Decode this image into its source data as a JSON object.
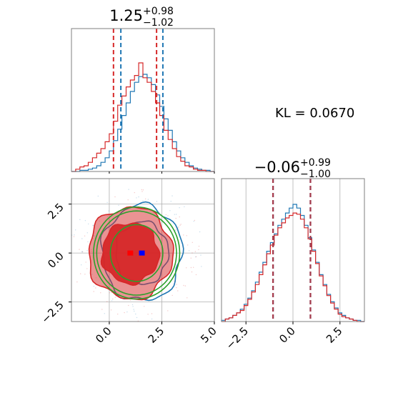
{
  "colors": {
    "series_a": "#1f77b4",
    "series_b": "#d62728",
    "contour_fit": "#2ca02c",
    "grid": "#b0b0b0",
    "frame": "#7f7f7f",
    "marker_a": "#0000ff",
    "marker_b": "#ff0000"
  },
  "figure": {
    "kl_text": "KL = 0.0670"
  },
  "chart_data": [
    {
      "type": "histogram",
      "panel": "marginal-x",
      "title": {
        "median": "1.25",
        "plus": "+0.98",
        "minus": "−1.02"
      },
      "xlim": [
        -1.8,
        5.0
      ],
      "grid": false,
      "bins": [
        -1.8,
        -1.6,
        -1.4,
        -1.2,
        -1.0,
        -0.8,
        -0.6,
        -0.4,
        -0.2,
        0.0,
        0.2,
        0.4,
        0.6,
        0.8,
        1.0,
        1.2,
        1.4,
        1.6,
        1.8,
        2.0,
        2.2,
        2.4,
        2.6,
        2.8,
        3.0,
        3.2,
        3.4,
        3.6,
        3.8,
        4.0,
        4.2,
        4.4,
        4.6,
        4.8,
        5.0
      ],
      "series": [
        {
          "color_key": "series_a",
          "counts": [
            0,
            0,
            0.01,
            0.01,
            0.02,
            0.03,
            0.05,
            0.08,
            0.12,
            0.18,
            0.27,
            0.37,
            0.49,
            0.6,
            0.7,
            0.78,
            0.83,
            0.85,
            0.82,
            0.76,
            0.67,
            0.57,
            0.46,
            0.36,
            0.26,
            0.18,
            0.12,
            0.08,
            0.05,
            0.03,
            0.02,
            0.01,
            0.01,
            0
          ],
          "quantiles": [
            0.55,
            2.55
          ]
        },
        {
          "color_key": "series_b",
          "counts": [
            0,
            0.02,
            0.04,
            0.05,
            0.08,
            0.12,
            0.16,
            0.2,
            0.26,
            0.33,
            0.44,
            0.58,
            0.66,
            0.74,
            0.8,
            0.84,
            0.95,
            0.82,
            0.78,
            0.7,
            0.6,
            0.49,
            0.36,
            0.28,
            0.2,
            0.13,
            0.09,
            0.05,
            0.04,
            0.02,
            0.01,
            0.01,
            0,
            0
          ],
          "quantiles": [
            0.2,
            2.25
          ]
        }
      ]
    },
    {
      "type": "contour",
      "panel": "joint",
      "xlim": [
        -1.8,
        5.0
      ],
      "ylim": [
        -3.5,
        3.8
      ],
      "xticks": [
        0.0,
        2.5,
        5.0
      ],
      "xtick_labels": [
        "0.0",
        "2.5",
        "5.0"
      ],
      "yticks": [
        -2.5,
        0.0,
        2.5
      ],
      "ytick_labels": [
        "−2.5",
        "0.0",
        "2.5"
      ],
      "grid": true,
      "center_a": [
        1.55,
        0.0
      ],
      "center_b": [
        1.0,
        0.0
      ],
      "levels": [
        {
          "color_key": "series_a",
          "rx": 1.9,
          "ry": 2.45,
          "cx": 1.55,
          "cy": 0.0,
          "fill": false
        },
        {
          "color_key": "series_a",
          "rx": 1.25,
          "ry": 1.6,
          "cx": 1.55,
          "cy": 0.0,
          "fill": false
        },
        {
          "color_key": "series_b",
          "rx": 2.0,
          "ry": 2.35,
          "cx": 1.0,
          "cy": 0.0,
          "fill": true,
          "opacity": 0.5
        },
        {
          "color_key": "series_b",
          "rx": 1.35,
          "ry": 1.55,
          "cx": 1.0,
          "cy": 0.0,
          "fill": true,
          "opacity": 0.95
        },
        {
          "color_key": "contour_fit",
          "rx": 2.05,
          "ry": 2.35,
          "cx": 1.3,
          "cy": 0.0,
          "fill": false
        },
        {
          "color_key": "contour_fit",
          "rx": 1.9,
          "ry": 2.15,
          "cx": 1.3,
          "cy": 0.0,
          "fill": false
        },
        {
          "color_key": "contour_fit",
          "rx": 1.25,
          "ry": 1.45,
          "cx": 1.3,
          "cy": 0.0,
          "fill": false
        }
      ]
    },
    {
      "type": "histogram",
      "panel": "marginal-y",
      "title": {
        "median": "−0.06",
        "plus": "+0.99",
        "minus": "−1.00"
      },
      "xlim": [
        -3.8,
        3.8
      ],
      "xticks": [
        -2.5,
        0.0,
        2.5
      ],
      "xtick_labels": [
        "−2.5",
        "0.0",
        "2.5"
      ],
      "grid": true,
      "bins": [
        -3.8,
        -3.6,
        -3.4,
        -3.2,
        -3.0,
        -2.8,
        -2.6,
        -2.4,
        -2.2,
        -2.0,
        -1.8,
        -1.6,
        -1.4,
        -1.2,
        -1.0,
        -0.8,
        -0.6,
        -0.4,
        -0.2,
        0.0,
        0.2,
        0.4,
        0.6,
        0.8,
        1.0,
        1.2,
        1.4,
        1.6,
        1.8,
        2.0,
        2.2,
        2.4,
        2.6,
        2.8,
        3.0,
        3.2,
        3.4,
        3.6,
        3.8
      ],
      "series": [
        {
          "color_key": "series_a",
          "counts": [
            0.01,
            0.02,
            0.03,
            0.05,
            0.07,
            0.1,
            0.14,
            0.19,
            0.25,
            0.32,
            0.4,
            0.48,
            0.57,
            0.64,
            0.71,
            0.78,
            0.83,
            0.88,
            0.92,
            0.95,
            0.92,
            0.86,
            0.78,
            0.68,
            0.58,
            0.48,
            0.38,
            0.3,
            0.22,
            0.16,
            0.11,
            0.07,
            0.05,
            0.03,
            0.02,
            0.01,
            0.01,
            0
          ],
          "quantiles": [
            -1.06,
            0.93
          ]
        },
        {
          "color_key": "series_b",
          "counts": [
            0,
            0.02,
            0.03,
            0.05,
            0.07,
            0.09,
            0.13,
            0.18,
            0.24,
            0.3,
            0.38,
            0.46,
            0.55,
            0.62,
            0.7,
            0.76,
            0.8,
            0.84,
            0.86,
            0.88,
            0.87,
            0.83,
            0.76,
            0.67,
            0.57,
            0.47,
            0.37,
            0.29,
            0.21,
            0.15,
            0.1,
            0.06,
            0.04,
            0.03,
            0.02,
            0.01,
            0,
            0
          ],
          "quantiles": [
            -1.06,
            0.93
          ]
        }
      ]
    }
  ]
}
